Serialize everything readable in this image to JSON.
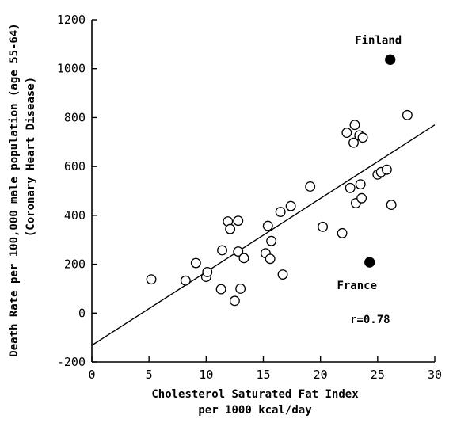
{
  "chart_data": {
    "type": "scatter",
    "title": "",
    "xlabel": [
      "Cholesterol Saturated Fat Index",
      "per 1000 kcal/day"
    ],
    "ylabel": [
      "Death Rate per 100,000 male population (age 55-64)",
      "(Coronary Heart Disease)"
    ],
    "xlim": [
      0,
      30
    ],
    "ylim": [
      -200,
      1200
    ],
    "x_ticks": [
      0,
      5,
      10,
      15,
      20,
      25,
      30
    ],
    "y_ticks": [
      -200,
      0,
      200,
      400,
      600,
      800,
      1000,
      1200
    ],
    "grid": false,
    "series": [
      {
        "marker": "open-circle",
        "points": [
          [
            5.2,
            138
          ],
          [
            8.2,
            133
          ],
          [
            9.1,
            205
          ],
          [
            10.0,
            148
          ],
          [
            10.1,
            168
          ],
          [
            11.3,
            98
          ],
          [
            11.4,
            257
          ],
          [
            11.9,
            375
          ],
          [
            12.1,
            344
          ],
          [
            12.5,
            50
          ],
          [
            12.8,
            378
          ],
          [
            12.8,
            252
          ],
          [
            13.0,
            100
          ],
          [
            13.3,
            225
          ],
          [
            15.2,
            245
          ],
          [
            15.4,
            357
          ],
          [
            15.6,
            222
          ],
          [
            15.7,
            295
          ],
          [
            16.5,
            414
          ],
          [
            16.7,
            158
          ],
          [
            17.4,
            438
          ],
          [
            19.1,
            518
          ],
          [
            20.2,
            353
          ],
          [
            21.9,
            327
          ],
          [
            22.3,
            738
          ],
          [
            22.6,
            512
          ],
          [
            22.9,
            697
          ],
          [
            23.0,
            770
          ],
          [
            23.1,
            450
          ],
          [
            23.4,
            727
          ],
          [
            23.5,
            527
          ],
          [
            23.6,
            470
          ],
          [
            23.7,
            718
          ],
          [
            25.0,
            567
          ],
          [
            25.3,
            577
          ],
          [
            25.8,
            587
          ],
          [
            26.2,
            443
          ],
          [
            27.6,
            810
          ]
        ]
      },
      {
        "marker": "filled-circle",
        "points": [
          [
            26.1,
            1037
          ],
          [
            24.3,
            208
          ]
        ]
      }
    ],
    "regression_line": {
      "x": [
        0,
        30
      ],
      "y": [
        -132,
        770
      ]
    },
    "annotations": [
      {
        "text": "Finland",
        "x": 26.1,
        "y": 1037
      },
      {
        "text": "France",
        "x": 24.3,
        "y": 208
      },
      {
        "text": "r=0.78"
      }
    ]
  }
}
